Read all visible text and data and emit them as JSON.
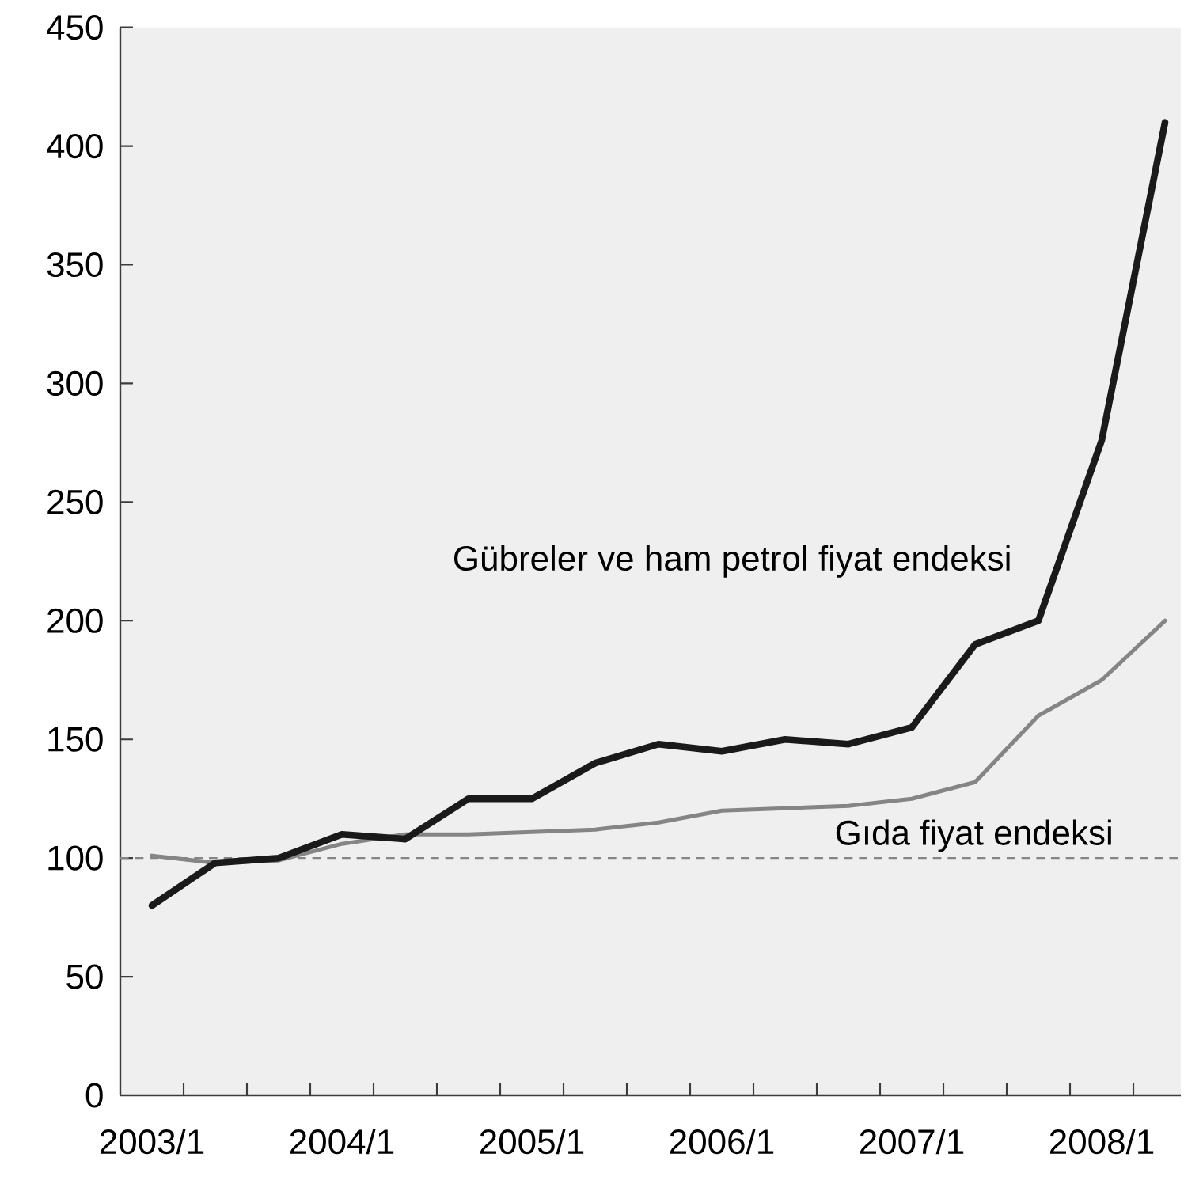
{
  "chart_data": {
    "type": "line",
    "x": [
      "2003-01",
      "2003-05",
      "2003-09",
      "2004-01",
      "2004-05",
      "2004-09",
      "2005-01",
      "2005-05",
      "2005-09",
      "2006-01",
      "2006-05",
      "2006-09",
      "2007-01",
      "2007-05",
      "2007-09",
      "2008-01",
      "2008-05"
    ],
    "series": [
      {
        "name": "Gübreler ve ham petrol fiyat endeksi",
        "color": "#1a1a1a",
        "values": [
          80,
          98,
          100,
          110,
          108,
          125,
          125,
          140,
          148,
          145,
          150,
          148,
          155,
          190,
          200,
          276,
          410
        ]
      },
      {
        "name": "Gıda fiyat endeksi",
        "color": "#858585",
        "values": [
          101,
          98,
          99,
          106,
          110,
          110,
          111,
          112,
          115,
          120,
          121,
          122,
          125,
          132,
          160,
          175,
          200
        ]
      }
    ],
    "xlim": [
      "2002-11",
      "2008-06"
    ],
    "xticks": [
      {
        "value": "2003-01",
        "label": "2003/1"
      },
      {
        "value": "2004-01",
        "label": "2004/1"
      },
      {
        "value": "2005-01",
        "label": "2005/1"
      },
      {
        "value": "2006-01",
        "label": "2006/1"
      },
      {
        "value": "2007-01",
        "label": "2007/1"
      },
      {
        "value": "2008-01",
        "label": "2008/1"
      },
      {
        "value": "2003-03",
        "label": null
      },
      {
        "value": "2003-07",
        "label": null
      },
      {
        "value": "2003-11",
        "label": null
      },
      {
        "value": "2004-03",
        "label": null
      },
      {
        "value": "2004-07",
        "label": null
      },
      {
        "value": "2004-11",
        "label": null
      },
      {
        "value": "2005-03",
        "label": null
      },
      {
        "value": "2005-07",
        "label": null
      },
      {
        "value": "2005-11",
        "label": null
      },
      {
        "value": "2006-03",
        "label": null
      },
      {
        "value": "2006-07",
        "label": null
      },
      {
        "value": "2006-11",
        "label": null
      },
      {
        "value": "2007-03",
        "label": null
      },
      {
        "value": "2007-07",
        "label": null
      },
      {
        "value": "2007-11",
        "label": null
      },
      {
        "value": "2008-03",
        "label": null
      }
    ],
    "ylim": [
      0,
      450
    ],
    "yticks": [
      0,
      50,
      100,
      150,
      200,
      250,
      300,
      350,
      400,
      450
    ],
    "ref_lines": [
      {
        "axis": "y",
        "value": 100,
        "color": "#858585",
        "line_style": "dashed"
      }
    ]
  }
}
